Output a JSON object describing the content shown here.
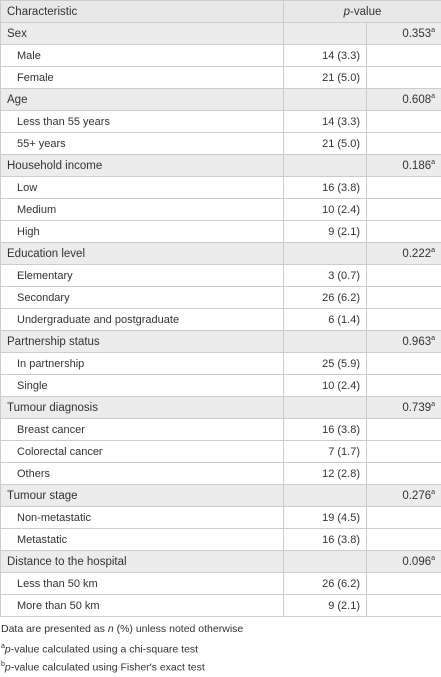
{
  "table": {
    "header": {
      "characteristic": "Characteristic",
      "p_italic": "p",
      "p_rest": "-value"
    },
    "groups": [
      {
        "label": "Sex",
        "p": "0.353",
        "sup": "a",
        "items": [
          {
            "label": "Male",
            "n": "14 (3.3)"
          },
          {
            "label": "Female",
            "n": "21 (5.0)"
          }
        ]
      },
      {
        "label": "Age",
        "p": "0.608",
        "sup": "a",
        "items": [
          {
            "label": "Less than 55 years",
            "n": "14 (3.3)"
          },
          {
            "label": "55+ years",
            "n": "21 (5.0)"
          }
        ]
      },
      {
        "label": "Household income",
        "p": "0.186",
        "sup": "a",
        "items": [
          {
            "label": "Low",
            "n": "16 (3.8)"
          },
          {
            "label": "Medium",
            "n": "10 (2.4)"
          },
          {
            "label": "High",
            "n": "9 (2.1)"
          }
        ]
      },
      {
        "label": "Education level",
        "p": "0.222",
        "sup": "a",
        "items": [
          {
            "label": "Elementary",
            "n": "3 (0.7)"
          },
          {
            "label": "Secondary",
            "n": "26 (6.2)"
          },
          {
            "label": "Undergraduate and postgraduate",
            "n": "6 (1.4)"
          }
        ]
      },
      {
        "label": "Partnership status",
        "p": "0.963",
        "sup": "a",
        "items": [
          {
            "label": "In partnership",
            "n": "25 (5.9)"
          },
          {
            "label": "Single",
            "n": "10 (2.4)"
          }
        ]
      },
      {
        "label": "Tumour diagnosis",
        "p": "0.739",
        "sup": "a",
        "items": [
          {
            "label": "Breast cancer",
            "n": "16 (3.8)"
          },
          {
            "label": "Colorectal cancer",
            "n": "7 (1.7)"
          },
          {
            "label": "Others",
            "n": "12 (2.8)"
          }
        ]
      },
      {
        "label": "Tumour stage",
        "p": "0.276",
        "sup": "a",
        "items": [
          {
            "label": "Non-metastatic",
            "n": "19 (4.5)"
          },
          {
            "label": "Metastatic",
            "n": "16 (3.8)"
          }
        ]
      },
      {
        "label": "Distance to the hospital",
        "p": "0.096",
        "sup": "a",
        "items": [
          {
            "label": "Less than 50 km",
            "n": "26 (6.2)"
          },
          {
            "label": "More than 50 km",
            "n": "9 (2.1)"
          }
        ]
      }
    ],
    "footnotes": [
      {
        "before": "Data are presented as ",
        "italic": "n",
        "after": " (%) unless noted otherwise"
      },
      {
        "sup": "a",
        "italic": "p",
        "after": "-value calculated using a chi-square test"
      },
      {
        "sup": "b",
        "italic": "p",
        "after": "-value calculated using Fisher's exact test"
      }
    ]
  }
}
